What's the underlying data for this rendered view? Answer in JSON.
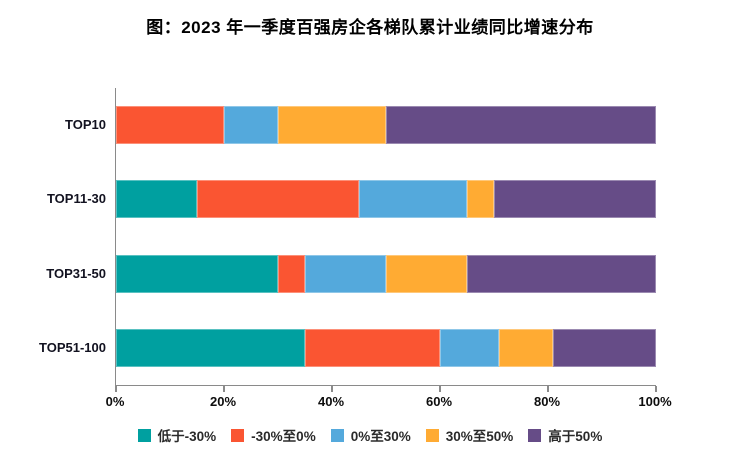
{
  "title": "图：2023 年一季度百强房企各梯队累计业绩同比增速分布",
  "chart_data": {
    "type": "bar",
    "stacked": true,
    "orientation": "horizontal",
    "title": "图：2023 年一季度百强房企各梯队累计业绩同比增速分布",
    "categories": [
      "TOP10",
      "TOP11-30",
      "TOP31-50",
      "TOP51-100"
    ],
    "series": [
      {
        "name": "低于-30%",
        "color": "#00A0A0",
        "values": [
          0,
          15,
          30,
          35
        ]
      },
      {
        "name": "-30%至0%",
        "color": "#FA5532",
        "values": [
          20,
          30,
          5,
          25
        ]
      },
      {
        "name": "0%至30%",
        "color": "#54A9DC",
        "values": [
          10,
          20,
          15,
          11
        ]
      },
      {
        "name": "30%至50%",
        "color": "#FFAB33",
        "values": [
          20,
          5,
          15,
          10
        ]
      },
      {
        "name": "高于50%",
        "color": "#664C87",
        "values": [
          50,
          30,
          35,
          19
        ]
      }
    ],
    "xlim": [
      0,
      100
    ],
    "x_tick_labels": [
      "0%",
      "20%",
      "40%",
      "60%",
      "80%",
      "100%"
    ],
    "x_tick_values": [
      0,
      20,
      40,
      60,
      80,
      100
    ],
    "grid": false,
    "legend_position": "bottom",
    "axis_color": "#8a8a8a"
  }
}
